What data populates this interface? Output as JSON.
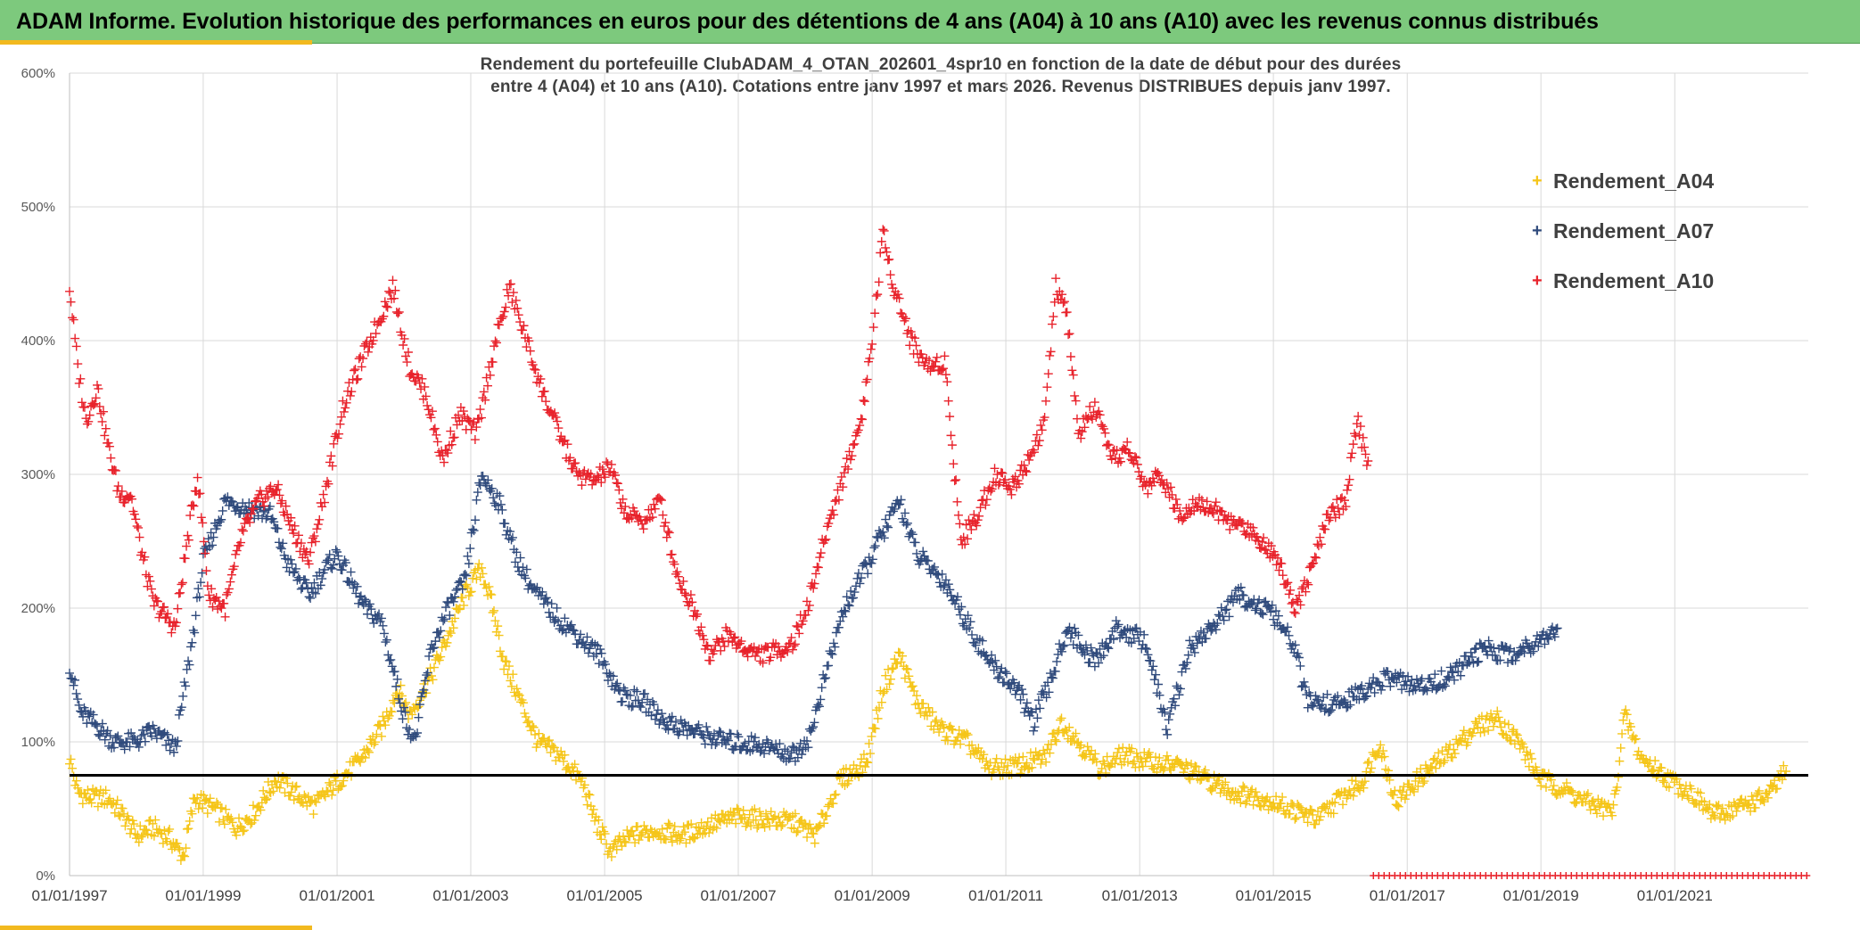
{
  "header": {
    "title": "ADAM Informe. Evolution historique des performances en euros pour des détentions de 4 ans (A04) à 10 ans (A10) avec les revenus connus distribués"
  },
  "colors": {
    "header_bg": "#7dc97d",
    "accent": "#f2b91f",
    "a04": "#f5c518",
    "a07": "#2f4a7c",
    "a10": "#e8222b",
    "threshold": "#000000",
    "grid": "#d9d9d9"
  },
  "chart_data": {
    "type": "scatter",
    "title_lines": [
      "Rendement du portefeuille ClubADAM_4_OTAN_202601_4spr10  en fonction de la date de début pour des durées",
      "entre 4 (A04) et 10 ans (A10). Cotations entre janv 1997 et mars 2026. Revenus DISTRIBUES depuis janv 1997."
    ],
    "xlabel": "",
    "ylabel": "",
    "x_range": [
      "1997-01-01",
      "2022-12-31"
    ],
    "x_ticks": [
      "01/01/1997",
      "01/01/1999",
      "01/01/2001",
      "01/01/2003",
      "01/01/2005",
      "01/01/2007",
      "01/01/2009",
      "01/01/2011",
      "01/01/2013",
      "01/01/2015",
      "01/01/2017",
      "01/01/2019",
      "01/01/2021"
    ],
    "y_ticks": [
      "0%",
      "100%",
      "200%",
      "300%",
      "400%",
      "500%",
      "600%"
    ],
    "ylim": [
      0,
      600
    ],
    "grid": true,
    "legend_position": "right",
    "horizontal_line": 75,
    "series": [
      {
        "name": "Rendement_A04",
        "color": "#f5c518",
        "points": [
          [
            "1997-01-01",
            88
          ],
          [
            "1997-02-15",
            62
          ],
          [
            "1997-05-01",
            58
          ],
          [
            "1997-08-01",
            58
          ],
          [
            "1997-11-01",
            43
          ],
          [
            "1998-01-01",
            30
          ],
          [
            "1998-04-01",
            36
          ],
          [
            "1998-07-01",
            28
          ],
          [
            "1998-09-15",
            14
          ],
          [
            "1998-11-15",
            58
          ],
          [
            "1999-03-01",
            50
          ],
          [
            "1999-07-01",
            36
          ],
          [
            "1999-10-01",
            46
          ],
          [
            "2000-02-01",
            72
          ],
          [
            "2000-06-01",
            60
          ],
          [
            "2000-09-01",
            52
          ],
          [
            "2001-01-01",
            70
          ],
          [
            "2001-05-01",
            85
          ],
          [
            "2001-09-01",
            110
          ],
          [
            "2001-12-01",
            140
          ],
          [
            "2002-02-01",
            120
          ],
          [
            "2002-06-01",
            150
          ],
          [
            "2002-09-01",
            180
          ],
          [
            "2002-12-01",
            210
          ],
          [
            "2003-03-01",
            230
          ],
          [
            "2003-05-01",
            200
          ],
          [
            "2003-07-01",
            160
          ],
          [
            "2003-10-01",
            130
          ],
          [
            "2004-01-01",
            100
          ],
          [
            "2004-05-01",
            90
          ],
          [
            "2004-09-01",
            70
          ],
          [
            "2004-11-15",
            40
          ],
          [
            "2005-02-01",
            18
          ],
          [
            "2005-06-01",
            30
          ],
          [
            "2005-10-01",
            34
          ],
          [
            "2006-03-01",
            30
          ],
          [
            "2006-08-01",
            38
          ],
          [
            "2007-01-01",
            44
          ],
          [
            "2007-06-01",
            42
          ],
          [
            "2007-11-01",
            40
          ],
          [
            "2008-03-01",
            30
          ],
          [
            "2008-07-01",
            70
          ],
          [
            "2008-12-01",
            85
          ],
          [
            "2009-03-01",
            140
          ],
          [
            "2009-06-01",
            165
          ],
          [
            "2009-09-01",
            130
          ],
          [
            "2010-01-01",
            110
          ],
          [
            "2010-06-01",
            100
          ],
          [
            "2010-10-01",
            80
          ],
          [
            "2011-03-01",
            82
          ],
          [
            "2011-08-01",
            88
          ],
          [
            "2011-11-01",
            115
          ],
          [
            "2012-02-01",
            100
          ],
          [
            "2012-06-01",
            80
          ],
          [
            "2012-10-01",
            90
          ],
          [
            "2013-03-01",
            85
          ],
          [
            "2013-08-01",
            82
          ],
          [
            "2014-01-01",
            72
          ],
          [
            "2014-06-01",
            62
          ],
          [
            "2014-11-01",
            58
          ],
          [
            "2015-04-01",
            50
          ],
          [
            "2015-09-01",
            42
          ],
          [
            "2016-01-01",
            58
          ],
          [
            "2016-05-01",
            70
          ],
          [
            "2016-08-01",
            100
          ],
          [
            "2016-11-01",
            55
          ],
          [
            "2017-03-01",
            72
          ],
          [
            "2017-08-01",
            90
          ],
          [
            "2018-01-01",
            110
          ],
          [
            "2018-05-01",
            118
          ],
          [
            "2018-09-01",
            100
          ],
          [
            "2019-01-01",
            72
          ],
          [
            "2019-05-01",
            65
          ],
          [
            "2019-09-01",
            55
          ],
          [
            "2020-02-01",
            48
          ],
          [
            "2020-04-01",
            120
          ],
          [
            "2020-07-01",
            88
          ],
          [
            "2020-12-01",
            72
          ],
          [
            "2021-04-01",
            62
          ],
          [
            "2021-08-01",
            45
          ],
          [
            "2022-01-01",
            52
          ],
          [
            "2022-06-01",
            60
          ],
          [
            "2022-09-01",
            78
          ]
        ]
      },
      {
        "name": "Rendement_A07",
        "color": "#2f4a7c",
        "points": [
          [
            "1997-01-01",
            158
          ],
          [
            "1997-03-01",
            122
          ],
          [
            "1997-06-01",
            112
          ],
          [
            "1997-09-01",
            100
          ],
          [
            "1998-01-01",
            100
          ],
          [
            "1998-04-01",
            108
          ],
          [
            "1998-08-01",
            95
          ],
          [
            "1998-11-01",
            175
          ],
          [
            "1999-01-01",
            235
          ],
          [
            "1999-05-01",
            280
          ],
          [
            "1999-09-01",
            275
          ],
          [
            "2000-01-01",
            270
          ],
          [
            "2000-04-01",
            235
          ],
          [
            "2000-08-01",
            210
          ],
          [
            "2000-11-01",
            230
          ],
          [
            "2001-01-01",
            240
          ],
          [
            "2001-06-01",
            200
          ],
          [
            "2001-09-01",
            190
          ],
          [
            "2002-01-01",
            120
          ],
          [
            "2002-03-01",
            100
          ],
          [
            "2002-06-01",
            170
          ],
          [
            "2002-09-01",
            200
          ],
          [
            "2002-12-01",
            220
          ],
          [
            "2003-03-01",
            300
          ],
          [
            "2003-06-01",
            280
          ],
          [
            "2003-09-01",
            240
          ],
          [
            "2003-12-01",
            215
          ],
          [
            "2004-04-01",
            195
          ],
          [
            "2004-08-01",
            180
          ],
          [
            "2004-12-01",
            165
          ],
          [
            "2005-04-01",
            135
          ],
          [
            "2005-08-01",
            130
          ],
          [
            "2005-12-01",
            115
          ],
          [
            "2006-05-01",
            108
          ],
          [
            "2006-11-01",
            100
          ],
          [
            "2007-05-01",
            98
          ],
          [
            "2007-11-01",
            90
          ],
          [
            "2008-02-01",
            105
          ],
          [
            "2008-04-01",
            140
          ],
          [
            "2008-08-01",
            200
          ],
          [
            "2008-12-01",
            230
          ],
          [
            "2009-02-01",
            250
          ],
          [
            "2009-06-01",
            280
          ],
          [
            "2009-09-01",
            240
          ],
          [
            "2010-02-01",
            220
          ],
          [
            "2010-06-01",
            190
          ],
          [
            "2010-10-01",
            160
          ],
          [
            "2011-03-01",
            140
          ],
          [
            "2011-06-01",
            115
          ],
          [
            "2011-09-01",
            145
          ],
          [
            "2011-12-01",
            185
          ],
          [
            "2012-05-01",
            160
          ],
          [
            "2012-09-01",
            185
          ],
          [
            "2013-02-01",
            175
          ],
          [
            "2013-06-01",
            110
          ],
          [
            "2013-10-01",
            170
          ],
          [
            "2014-03-01",
            190
          ],
          [
            "2014-07-01",
            210
          ],
          [
            "2015-01-01",
            195
          ],
          [
            "2015-05-01",
            170
          ],
          [
            "2015-07-01",
            130
          ],
          [
            "2016-01-01",
            128
          ],
          [
            "2016-06-01",
            140
          ],
          [
            "2016-10-01",
            148
          ],
          [
            "2017-03-01",
            140
          ],
          [
            "2017-09-01",
            150
          ],
          [
            "2018-03-01",
            170
          ],
          [
            "2018-08-01",
            165
          ],
          [
            "2019-01-01",
            178
          ],
          [
            "2019-04-01",
            185
          ]
        ]
      },
      {
        "name": "Rendement_A10",
        "color": "#e8222b",
        "points": [
          [
            "1997-01-01",
            440
          ],
          [
            "1997-02-15",
            380
          ],
          [
            "1997-04-01",
            340
          ],
          [
            "1997-06-01",
            365
          ],
          [
            "1997-08-01",
            320
          ],
          [
            "1997-10-01",
            285
          ],
          [
            "1997-12-01",
            285
          ],
          [
            "1998-02-01",
            240
          ],
          [
            "1998-04-01",
            205
          ],
          [
            "1998-06-01",
            195
          ],
          [
            "1998-08-01",
            185
          ],
          [
            "1998-10-01",
            245
          ],
          [
            "1998-12-01",
            300
          ],
          [
            "1999-02-01",
            210
          ],
          [
            "1999-05-01",
            200
          ],
          [
            "1999-08-01",
            255
          ],
          [
            "1999-11-01",
            280
          ],
          [
            "2000-02-01",
            290
          ],
          [
            "2000-05-01",
            260
          ],
          [
            "2000-08-01",
            235
          ],
          [
            "2000-11-01",
            290
          ],
          [
            "2001-02-01",
            350
          ],
          [
            "2001-05-01",
            380
          ],
          [
            "2001-08-01",
            410
          ],
          [
            "2001-11-01",
            440
          ],
          [
            "2002-02-01",
            380
          ],
          [
            "2002-05-01",
            360
          ],
          [
            "2002-08-01",
            310
          ],
          [
            "2002-11-01",
            345
          ],
          [
            "2003-02-01",
            330
          ],
          [
            "2003-05-01",
            390
          ],
          [
            "2003-08-01",
            440
          ],
          [
            "2003-11-01",
            400
          ],
          [
            "2004-02-01",
            360
          ],
          [
            "2004-05-01",
            330
          ],
          [
            "2004-08-01",
            300
          ],
          [
            "2004-11-01",
            295
          ],
          [
            "2005-02-01",
            305
          ],
          [
            "2005-05-01",
            270
          ],
          [
            "2005-08-01",
            265
          ],
          [
            "2005-11-01",
            280
          ],
          [
            "2006-02-01",
            225
          ],
          [
            "2006-05-01",
            200
          ],
          [
            "2006-08-01",
            165
          ],
          [
            "2006-11-01",
            180
          ],
          [
            "2007-02-01",
            170
          ],
          [
            "2007-05-01",
            165
          ],
          [
            "2007-08-01",
            168
          ],
          [
            "2007-11-01",
            175
          ],
          [
            "2008-02-01",
            210
          ],
          [
            "2008-05-01",
            260
          ],
          [
            "2008-08-01",
            300
          ],
          [
            "2008-11-01",
            340
          ],
          [
            "2009-01-01",
            400
          ],
          [
            "2009-03-01",
            480
          ],
          [
            "2009-05-01",
            440
          ],
          [
            "2009-08-01",
            400
          ],
          [
            "2009-11-01",
            380
          ],
          [
            "2010-02-01",
            385
          ],
          [
            "2010-05-01",
            250
          ],
          [
            "2010-08-01",
            270
          ],
          [
            "2010-11-01",
            300
          ],
          [
            "2011-02-01",
            290
          ],
          [
            "2011-05-01",
            310
          ],
          [
            "2011-08-01",
            340
          ],
          [
            "2011-10-01",
            440
          ],
          [
            "2011-12-01",
            420
          ],
          [
            "2012-02-01",
            330
          ],
          [
            "2012-05-01",
            350
          ],
          [
            "2012-08-01",
            310
          ],
          [
            "2012-11-01",
            320
          ],
          [
            "2013-02-01",
            290
          ],
          [
            "2013-05-01",
            300
          ],
          [
            "2013-08-01",
            270
          ],
          [
            "2013-11-01",
            280
          ],
          [
            "2014-02-01",
            275
          ],
          [
            "2014-05-01",
            265
          ],
          [
            "2014-08-01",
            260
          ],
          [
            "2014-11-01",
            250
          ],
          [
            "2015-02-01",
            235
          ],
          [
            "2015-05-01",
            200
          ],
          [
            "2015-08-01",
            230
          ],
          [
            "2015-11-01",
            270
          ],
          [
            "2016-02-01",
            280
          ],
          [
            "2016-04-01",
            340
          ],
          [
            "2016-06-01",
            310
          ]
        ]
      }
    ]
  }
}
